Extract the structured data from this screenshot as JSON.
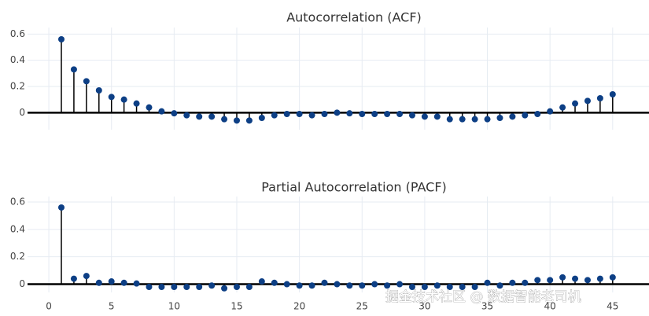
{
  "chart_data": [
    {
      "type": "stem",
      "title": "Autocorrelation (ACF)",
      "x": [
        1,
        2,
        3,
        4,
        5,
        6,
        7,
        8,
        9,
        10,
        11,
        12,
        13,
        14,
        15,
        16,
        17,
        18,
        19,
        20,
        21,
        22,
        23,
        24,
        25,
        26,
        27,
        28,
        29,
        30,
        31,
        32,
        33,
        34,
        35,
        36,
        37,
        38,
        39,
        40,
        41,
        42,
        43,
        44,
        45
      ],
      "values": [
        0.56,
        0.33,
        0.24,
        0.17,
        0.12,
        0.1,
        0.07,
        0.04,
        0.01,
        -0.005,
        -0.02,
        -0.03,
        -0.03,
        -0.05,
        -0.06,
        -0.06,
        -0.04,
        -0.02,
        -0.01,
        -0.01,
        -0.02,
        -0.01,
        0.0,
        -0.005,
        -0.01,
        -0.01,
        -0.01,
        -0.01,
        -0.02,
        -0.03,
        -0.03,
        -0.05,
        -0.05,
        -0.05,
        -0.05,
        -0.04,
        -0.03,
        -0.02,
        -0.01,
        0.01,
        0.04,
        0.07,
        0.09,
        0.11,
        0.14
      ],
      "color": "#0d3f85",
      "stem_color": "#000000",
      "xlim": [
        -1.7,
        47.9
      ],
      "xticks": [
        0,
        5,
        10,
        15,
        20,
        25,
        30,
        35,
        40,
        45
      ],
      "xtick_labels": false,
      "ylim": [
        -0.13,
        0.65
      ],
      "yticks": [
        0,
        0.2,
        0.4,
        0.6
      ],
      "grid": true
    },
    {
      "type": "stem",
      "title": "Partial Autocorrelation (PACF)",
      "x": [
        1,
        2,
        3,
        4,
        5,
        6,
        7,
        8,
        9,
        10,
        11,
        12,
        13,
        14,
        15,
        16,
        17,
        18,
        19,
        20,
        21,
        22,
        23,
        24,
        25,
        26,
        27,
        28,
        29,
        30,
        31,
        32,
        33,
        34,
        35,
        36,
        37,
        38,
        39,
        40,
        41,
        42,
        43,
        44,
        45
      ],
      "values": [
        0.56,
        0.04,
        0.06,
        0.01,
        0.02,
        0.01,
        0.005,
        -0.02,
        -0.02,
        -0.02,
        -0.02,
        -0.02,
        -0.01,
        -0.03,
        -0.02,
        -0.02,
        0.02,
        0.01,
        0.0,
        -0.01,
        -0.01,
        0.01,
        0.0,
        -0.01,
        -0.01,
        0.0,
        -0.01,
        0.0,
        -0.02,
        -0.02,
        -0.01,
        -0.02,
        -0.02,
        -0.02,
        0.01,
        -0.01,
        0.01,
        0.01,
        0.03,
        0.03,
        0.05,
        0.04,
        0.03,
        0.04,
        0.05
      ],
      "color": "#0d3f85",
      "stem_color": "#000000",
      "xlim": [
        -1.7,
        47.9
      ],
      "xticks": [
        0,
        5,
        10,
        15,
        20,
        25,
        30,
        35,
        40,
        45
      ],
      "xtick_labels": true,
      "ylim": [
        -0.06,
        0.64
      ],
      "yticks": [
        0,
        0.2,
        0.4,
        0.6
      ],
      "grid": true
    }
  ],
  "watermark": "掘金技术社区 @ 数据智能老司机"
}
